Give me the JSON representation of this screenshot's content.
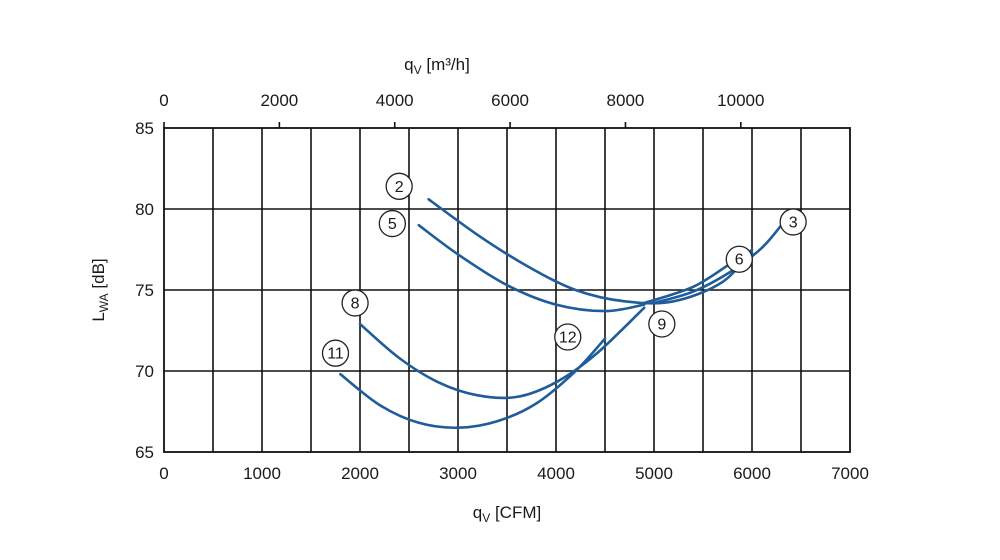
{
  "chart_data": {
    "type": "line",
    "xlabel": "qV [CFM]",
    "xlabel_parts": {
      "main": "q",
      "sub": "V",
      "unit": " [CFM]"
    },
    "x2label": "qV [m³/h]",
    "x2label_parts": {
      "main": "q",
      "sub": "V",
      "unit": " [m³/h]"
    },
    "ylabel": "LWA [dB]",
    "ylabel_parts": {
      "main": "L",
      "sub": "WA",
      "unit": " [dB]"
    },
    "xlim": [
      0,
      7000
    ],
    "ylim": [
      65,
      85
    ],
    "x2_per_x": 1.699,
    "x_ticks": [
      "0",
      "1000",
      "2000",
      "3000",
      "4000",
      "5000",
      "6000",
      "7000"
    ],
    "x2_ticks": [
      {
        "label": "0",
        "value": 0
      },
      {
        "label": "2000",
        "value": 2000
      },
      {
        "label": "4000",
        "value": 4000
      },
      {
        "label": "6000",
        "value": 6000
      },
      {
        "label": "8000",
        "value": 8000
      },
      {
        "label": "10000",
        "value": 10000
      }
    ],
    "y_ticks": [
      "65",
      "70",
      "75",
      "80",
      "85"
    ],
    "x_grid_step": 500,
    "y_grid_step": 5,
    "grid": true,
    "series": [
      {
        "name": "2",
        "x": [
          2700,
          3200,
          3700,
          4200,
          4700,
          5200,
          5700,
          6000
        ],
        "y": [
          80.6,
          78.4,
          76.5,
          75.0,
          74.3,
          74.3,
          75.5,
          77.5
        ]
      },
      {
        "name": "3",
        "x": [
          5000,
          5400,
          5800,
          6100,
          6300
        ],
        "y": [
          74.2,
          74.9,
          76.2,
          77.6,
          79.0
        ]
      },
      {
        "name": "5",
        "x": [
          2600,
          3000,
          3500,
          4000,
          4500,
          4900
        ],
        "y": [
          79.0,
          77.2,
          75.3,
          74.1,
          73.7,
          74.1
        ]
      },
      {
        "name": "6",
        "x": [
          4900,
          5400,
          5800,
          6000
        ],
        "y": [
          74.2,
          75.2,
          76.7,
          77.3
        ]
      },
      {
        "name": "8",
        "x": [
          2000,
          2400,
          2800,
          3200,
          3600,
          4000,
          4400,
          4900
        ],
        "y": [
          72.9,
          70.8,
          69.3,
          68.5,
          68.4,
          69.3,
          71.0,
          73.9
        ]
      },
      {
        "name": "9",
        "x": [
          4900
        ],
        "y": [
          73.9
        ]
      },
      {
        "name": "11",
        "x": [
          1800,
          2200,
          2600,
          3000,
          3400,
          3800,
          4200,
          4500
        ],
        "y": [
          69.8,
          67.9,
          66.8,
          66.5,
          66.9,
          68.0,
          70.0,
          72.0
        ]
      },
      {
        "name": "12",
        "x": [
          4500
        ],
        "y": [
          72.0
        ]
      }
    ],
    "labels": [
      {
        "text": "2",
        "x": 2400,
        "y": 81.4
      },
      {
        "text": "5",
        "x": 2330,
        "y": 79.1
      },
      {
        "text": "6",
        "x": 5870,
        "y": 76.9
      },
      {
        "text": "3",
        "x": 6420,
        "y": 79.2
      },
      {
        "text": "8",
        "x": 1950,
        "y": 74.2
      },
      {
        "text": "11",
        "x": 1750,
        "y": 71.1
      },
      {
        "text": "12",
        "x": 4120,
        "y": 72.1
      },
      {
        "text": "9",
        "x": 5080,
        "y": 72.9
      }
    ]
  }
}
